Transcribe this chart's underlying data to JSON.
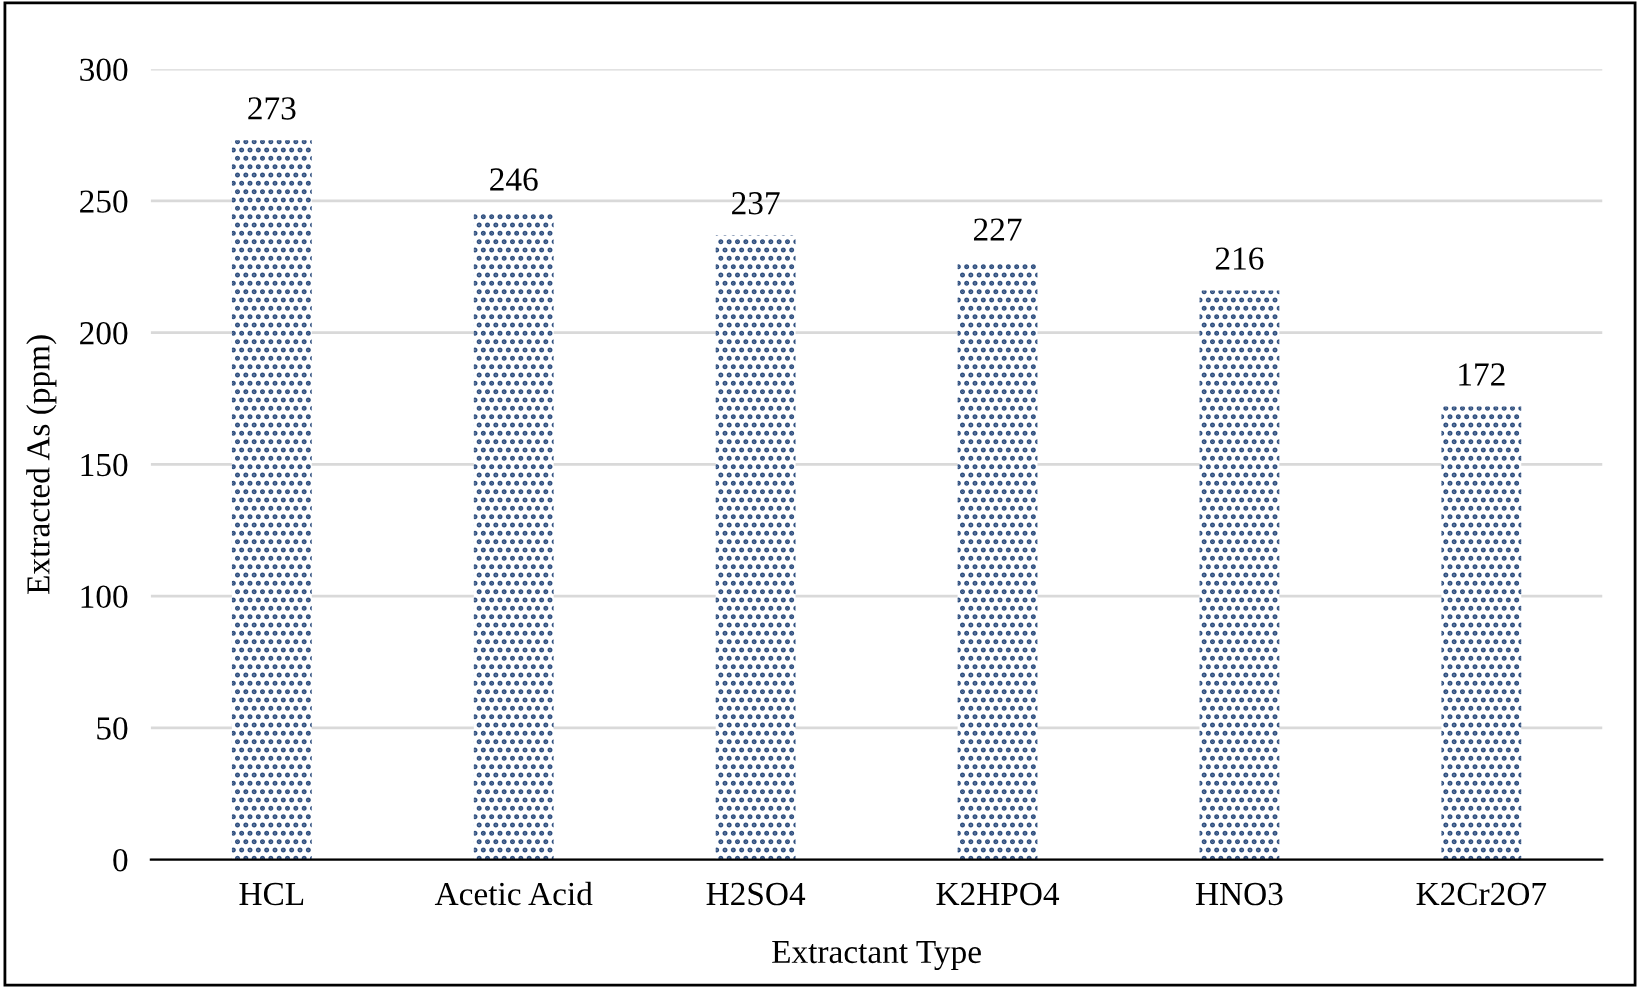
{
  "chart_data": {
    "type": "bar",
    "xlabel": "Extractant Type",
    "ylabel": "Extracted As (ppm)",
    "categories": [
      "HCL",
      "Acetic Acid",
      "H2SO4",
      "K2HPO4",
      "HNO3",
      "K2Cr2O7"
    ],
    "values": [
      273,
      246,
      237,
      227,
      216,
      172
    ],
    "color": "#2f4f7f",
    "ylim": [
      0,
      300
    ],
    "yticks": [
      0,
      50,
      100,
      150,
      200,
      250,
      300
    ],
    "grid": "y",
    "data_labels": true
  }
}
